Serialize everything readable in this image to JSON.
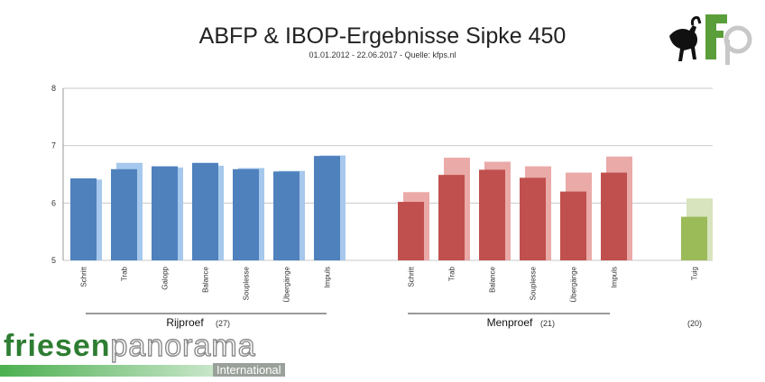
{
  "chart_data": {
    "type": "bar",
    "title": "ABFP & IBOP-Ergebnisse Sipke 450",
    "subtitle": "01.01.2012 - 22.06.2017 - Quelle: kfps.nl",
    "ylim": [
      5,
      8
    ],
    "yticks": [
      5,
      6,
      7,
      8
    ],
    "grid": true,
    "groups": [
      {
        "name": "Rijproef",
        "count": "(27)",
        "color": "#4f81bd",
        "light_color": "#a6c8ec",
        "categories": [
          "Schritt",
          "Trab",
          "Galopp",
          "Balance",
          "Souplesse",
          "Übergänge",
          "Impuls"
        ],
        "values": [
          6.43,
          6.59,
          6.64,
          6.7,
          6.59,
          6.55,
          6.82
        ],
        "reference_values": [
          6.41,
          6.7,
          6.62,
          6.65,
          6.61,
          6.56,
          6.83
        ]
      },
      {
        "name": "Menproef",
        "count": "(21)",
        "color": "#c0504d",
        "light_color": "#eaaaa8",
        "categories": [
          "Schritt",
          "Trab",
          "Balance",
          "Souplesse",
          "Übergänge",
          "Impuls"
        ],
        "values": [
          6.02,
          6.49,
          6.58,
          6.44,
          6.2,
          6.53
        ],
        "reference_values": [
          6.19,
          6.79,
          6.72,
          6.64,
          6.53,
          6.81
        ]
      },
      {
        "name": "",
        "count": "(20)",
        "color": "#9bbb59",
        "light_color": "#d7e4bd",
        "categories": [
          "Tuig"
        ],
        "values": [
          5.76
        ],
        "reference_values": [
          6.08
        ]
      }
    ]
  },
  "logos": {
    "brand_word_1": "friesen",
    "brand_word_2": "panorama",
    "brand_sub": "International"
  }
}
